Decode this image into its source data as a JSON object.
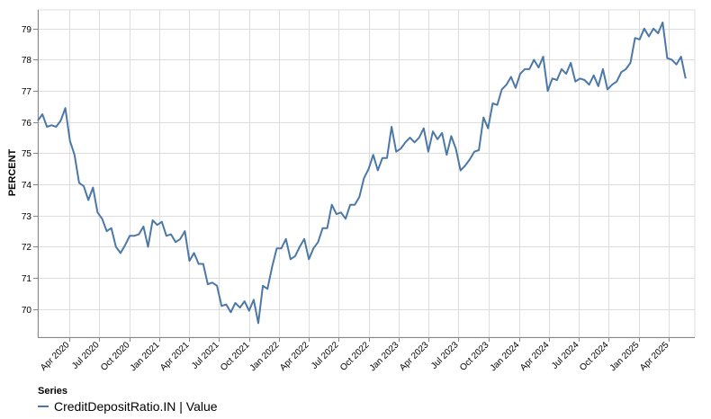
{
  "chart_data": {
    "type": "line",
    "ylabel": "PERCENT",
    "ylim": [
      69.1,
      79.6
    ],
    "yticks": [
      70,
      71,
      72,
      73,
      74,
      75,
      76,
      77,
      78,
      79
    ],
    "xlim": [
      "2019-12-27",
      "2025-06-20"
    ],
    "xticks": [
      {
        "date": "2020-04-01",
        "label": "Apr 2020"
      },
      {
        "date": "2020-07-01",
        "label": "Jul 2020"
      },
      {
        "date": "2020-10-01",
        "label": "Oct 2020"
      },
      {
        "date": "2021-01-01",
        "label": "Jan 2021"
      },
      {
        "date": "2021-04-01",
        "label": "Apr 2021"
      },
      {
        "date": "2021-07-01",
        "label": "Jul 2021"
      },
      {
        "date": "2021-10-01",
        "label": "Oct 2021"
      },
      {
        "date": "2022-01-01",
        "label": "Jan 2022"
      },
      {
        "date": "2022-04-01",
        "label": "Apr 2022"
      },
      {
        "date": "2022-07-01",
        "label": "Jul 2022"
      },
      {
        "date": "2022-10-01",
        "label": "Oct 2022"
      },
      {
        "date": "2023-01-01",
        "label": "Jan 2023"
      },
      {
        "date": "2023-04-01",
        "label": "Apr 2023"
      },
      {
        "date": "2023-07-01",
        "label": "Jul 2023"
      },
      {
        "date": "2023-10-01",
        "label": "Oct 2023"
      },
      {
        "date": "2024-01-01",
        "label": "Jan 2024"
      },
      {
        "date": "2024-04-01",
        "label": "Apr 2024"
      },
      {
        "date": "2024-07-01",
        "label": "Jul 2024"
      },
      {
        "date": "2024-10-01",
        "label": "Oct 2024"
      },
      {
        "date": "2025-01-01",
        "label": "Jan 2025"
      },
      {
        "date": "2025-04-01",
        "label": "Apr 2025"
      }
    ],
    "grid": true,
    "legend": {
      "title": "Series",
      "position": "bottom-left"
    },
    "series": [
      {
        "name": "CreditDepositRatio.IN | Value",
        "color": "#4c78a8",
        "points": [
          [
            "2019-12-27",
            76.05
          ],
          [
            "2020-01-10",
            76.25
          ],
          [
            "2020-01-24",
            75.85
          ],
          [
            "2020-02-07",
            75.9
          ],
          [
            "2020-02-21",
            75.85
          ],
          [
            "2020-03-06",
            76.05
          ],
          [
            "2020-03-20",
            76.45
          ],
          [
            "2020-04-03",
            75.4
          ],
          [
            "2020-04-17",
            74.95
          ],
          [
            "2020-05-01",
            74.05
          ],
          [
            "2020-05-15",
            73.95
          ],
          [
            "2020-05-29",
            73.5
          ],
          [
            "2020-06-12",
            73.9
          ],
          [
            "2020-06-26",
            73.1
          ],
          [
            "2020-07-10",
            72.9
          ],
          [
            "2020-07-24",
            72.5
          ],
          [
            "2020-08-07",
            72.6
          ],
          [
            "2020-08-21",
            72.0
          ],
          [
            "2020-09-04",
            71.8
          ],
          [
            "2020-09-18",
            72.05
          ],
          [
            "2020-10-02",
            72.35
          ],
          [
            "2020-10-16",
            72.35
          ],
          [
            "2020-10-30",
            72.4
          ],
          [
            "2020-11-13",
            72.65
          ],
          [
            "2020-11-27",
            72.0
          ],
          [
            "2020-12-11",
            72.85
          ],
          [
            "2020-12-25",
            72.7
          ],
          [
            "2021-01-08",
            72.8
          ],
          [
            "2021-01-22",
            72.35
          ],
          [
            "2021-02-05",
            72.4
          ],
          [
            "2021-02-19",
            72.15
          ],
          [
            "2021-03-05",
            72.25
          ],
          [
            "2021-03-19",
            72.5
          ],
          [
            "2021-04-02",
            71.55
          ],
          [
            "2021-04-16",
            71.8
          ],
          [
            "2021-04-30",
            71.45
          ],
          [
            "2021-05-14",
            71.45
          ],
          [
            "2021-05-28",
            70.8
          ],
          [
            "2021-06-11",
            70.85
          ],
          [
            "2021-06-25",
            70.75
          ],
          [
            "2021-07-09",
            70.1
          ],
          [
            "2021-07-23",
            70.15
          ],
          [
            "2021-08-06",
            69.9
          ],
          [
            "2021-08-20",
            70.2
          ],
          [
            "2021-09-03",
            70.05
          ],
          [
            "2021-09-17",
            70.25
          ],
          [
            "2021-10-01",
            69.95
          ],
          [
            "2021-10-15",
            70.3
          ],
          [
            "2021-10-29",
            69.55
          ],
          [
            "2021-11-12",
            70.75
          ],
          [
            "2021-11-26",
            70.65
          ],
          [
            "2021-12-10",
            71.35
          ],
          [
            "2021-12-24",
            71.95
          ],
          [
            "2022-01-07",
            71.95
          ],
          [
            "2022-01-21",
            72.25
          ],
          [
            "2022-02-04",
            71.6
          ],
          [
            "2022-02-18",
            71.7
          ],
          [
            "2022-03-04",
            72.0
          ],
          [
            "2022-03-18",
            72.25
          ],
          [
            "2022-04-01",
            71.6
          ],
          [
            "2022-04-15",
            71.95
          ],
          [
            "2022-04-29",
            72.15
          ],
          [
            "2022-05-13",
            72.6
          ],
          [
            "2022-05-27",
            72.6
          ],
          [
            "2022-06-10",
            73.35
          ],
          [
            "2022-06-24",
            73.05
          ],
          [
            "2022-07-08",
            73.1
          ],
          [
            "2022-07-22",
            72.9
          ],
          [
            "2022-08-05",
            73.35
          ],
          [
            "2022-08-19",
            73.35
          ],
          [
            "2022-09-02",
            73.6
          ],
          [
            "2022-09-16",
            74.2
          ],
          [
            "2022-09-30",
            74.5
          ],
          [
            "2022-10-14",
            74.95
          ],
          [
            "2022-10-28",
            74.45
          ],
          [
            "2022-11-11",
            74.85
          ],
          [
            "2022-11-25",
            74.85
          ],
          [
            "2022-12-09",
            75.85
          ],
          [
            "2022-12-23",
            75.05
          ],
          [
            "2023-01-06",
            75.15
          ],
          [
            "2023-01-20",
            75.35
          ],
          [
            "2023-02-03",
            75.5
          ],
          [
            "2023-02-17",
            75.35
          ],
          [
            "2023-03-03",
            75.5
          ],
          [
            "2023-03-17",
            75.8
          ],
          [
            "2023-03-31",
            75.05
          ],
          [
            "2023-04-14",
            75.7
          ],
          [
            "2023-04-28",
            75.45
          ],
          [
            "2023-05-12",
            75.65
          ],
          [
            "2023-05-26",
            74.95
          ],
          [
            "2023-06-09",
            75.55
          ],
          [
            "2023-06-23",
            75.15
          ],
          [
            "2023-07-07",
            74.45
          ],
          [
            "2023-07-21",
            74.6
          ],
          [
            "2023-08-04",
            74.8
          ],
          [
            "2023-08-18",
            75.05
          ],
          [
            "2023-09-01",
            75.1
          ],
          [
            "2023-09-15",
            76.15
          ],
          [
            "2023-09-29",
            75.8
          ],
          [
            "2023-10-13",
            76.6
          ],
          [
            "2023-10-27",
            76.55
          ],
          [
            "2023-11-10",
            77.05
          ],
          [
            "2023-11-24",
            77.2
          ],
          [
            "2023-12-08",
            77.45
          ],
          [
            "2023-12-22",
            77.1
          ],
          [
            "2024-01-05",
            77.55
          ],
          [
            "2024-01-19",
            77.7
          ],
          [
            "2024-02-02",
            77.7
          ],
          [
            "2024-02-16",
            78.0
          ],
          [
            "2024-03-01",
            77.75
          ],
          [
            "2024-03-15",
            78.1
          ],
          [
            "2024-03-29",
            77.0
          ],
          [
            "2024-04-12",
            77.4
          ],
          [
            "2024-04-26",
            77.35
          ],
          [
            "2024-05-10",
            77.7
          ],
          [
            "2024-05-24",
            77.55
          ],
          [
            "2024-06-07",
            77.9
          ],
          [
            "2024-06-21",
            77.3
          ],
          [
            "2024-07-05",
            77.4
          ],
          [
            "2024-07-19",
            77.35
          ],
          [
            "2024-08-02",
            77.2
          ],
          [
            "2024-08-16",
            77.5
          ],
          [
            "2024-08-30",
            77.15
          ],
          [
            "2024-09-13",
            77.7
          ],
          [
            "2024-09-27",
            77.05
          ],
          [
            "2024-10-11",
            77.2
          ],
          [
            "2024-10-25",
            77.3
          ],
          [
            "2024-11-08",
            77.6
          ],
          [
            "2024-11-22",
            77.7
          ],
          [
            "2024-12-06",
            77.9
          ],
          [
            "2024-12-20",
            78.7
          ],
          [
            "2025-01-03",
            78.65
          ],
          [
            "2025-01-17",
            79.0
          ],
          [
            "2025-01-31",
            78.75
          ],
          [
            "2025-02-14",
            79.0
          ],
          [
            "2025-02-28",
            78.85
          ],
          [
            "2025-03-14",
            79.2
          ],
          [
            "2025-03-28",
            78.05
          ],
          [
            "2025-04-11",
            78.0
          ],
          [
            "2025-04-25",
            77.85
          ],
          [
            "2025-05-09",
            78.1
          ],
          [
            "2025-05-23",
            77.4
          ]
        ]
      }
    ]
  },
  "legend": {
    "title": "Series",
    "label": "CreditDepositRatio.IN | Value"
  }
}
